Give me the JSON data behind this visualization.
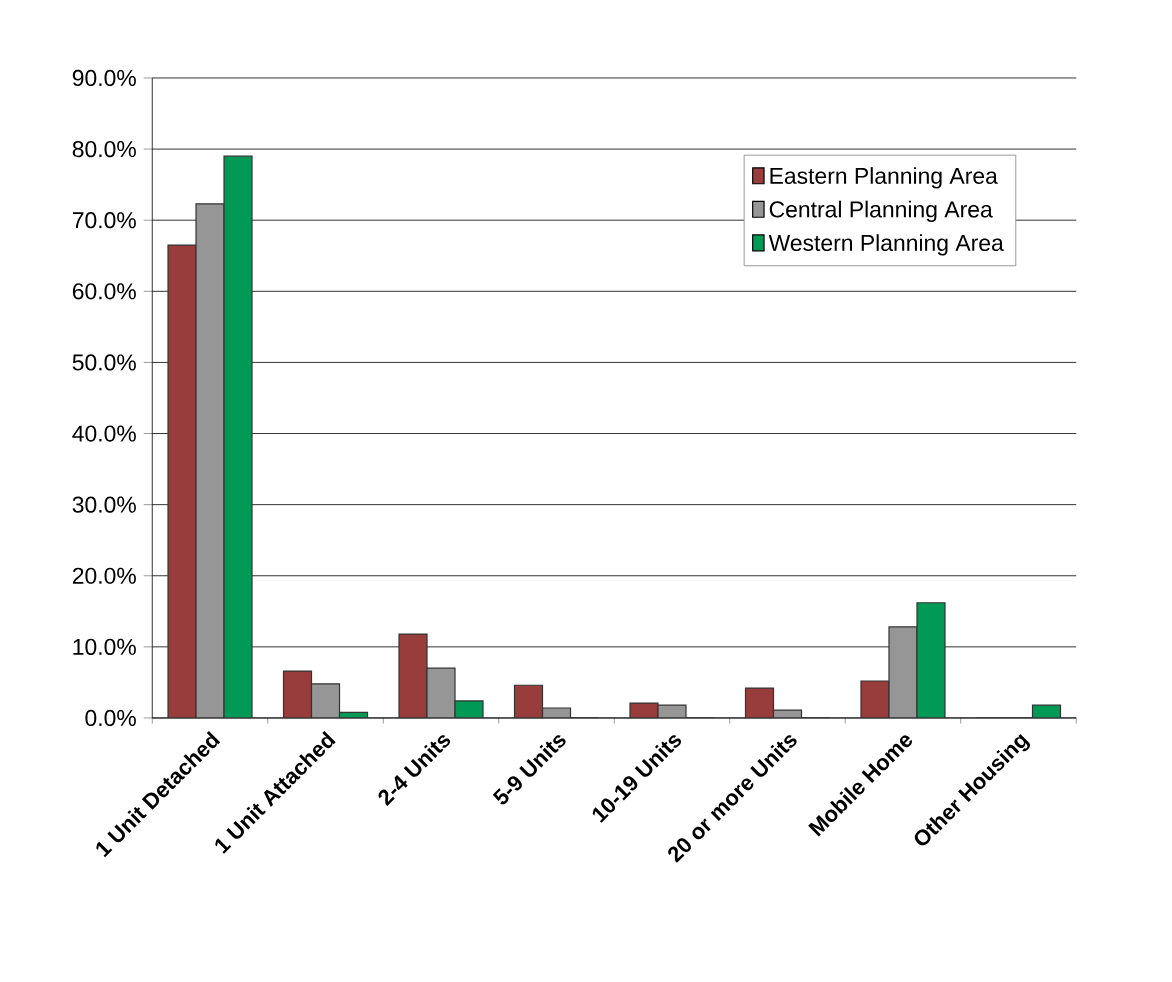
{
  "chart_data": {
    "type": "bar",
    "categories": [
      "1 Unit Detached",
      "1 Unit Attached",
      "2-4 Units",
      "5-9 Units",
      "10-19 Units",
      "20 or more Units",
      "Mobile Home",
      "Other Housing"
    ],
    "series": [
      {
        "name": "Eastern Planning Area",
        "color": "#993c3c",
        "values": [
          66.5,
          6.6,
          11.8,
          4.6,
          2.1,
          4.2,
          5.2,
          0
        ]
      },
      {
        "name": "Central Planning Area",
        "color": "#969696",
        "values": [
          72.3,
          4.8,
          7.0,
          1.4,
          1.8,
          1.1,
          12.8,
          0
        ]
      },
      {
        "name": "Western Planning Area",
        "color": "#009955",
        "values": [
          79.0,
          0.8,
          2.4,
          0,
          0,
          0,
          16.2,
          1.8
        ]
      }
    ],
    "ylim": [
      0,
      90
    ],
    "yticks": [
      {
        "value": 0,
        "label": "0.0%"
      },
      {
        "value": 10,
        "label": "10.0%"
      },
      {
        "value": 20,
        "label": "20.0%"
      },
      {
        "value": 30,
        "label": "30.0%"
      },
      {
        "value": 40,
        "label": "40.0%"
      },
      {
        "value": 50,
        "label": "50.0%"
      },
      {
        "value": 60,
        "label": "60.0%"
      },
      {
        "value": 70,
        "label": "70.0%"
      },
      {
        "value": 80,
        "label": "80.0%"
      },
      {
        "value": 90,
        "label": "90.0%"
      }
    ],
    "grid": "y",
    "legend": "top right"
  }
}
